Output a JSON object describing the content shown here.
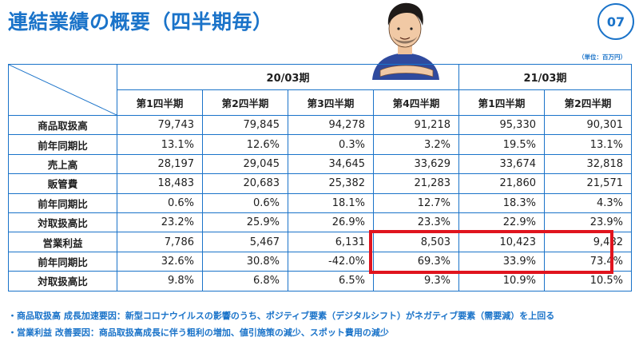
{
  "header": {
    "title": "連結業績の概要（四半期毎）",
    "page_number": "07",
    "unit": "（単位：百万円）"
  },
  "colors": {
    "accent": "#1a73c9",
    "highlight": "#e0141e",
    "text": "#1e1e1e"
  },
  "table": {
    "groups": [
      "20/03期",
      "21/03期"
    ],
    "quarters": [
      "第1四半期",
      "第2四半期",
      "第3四半期",
      "第4四半期",
      "第1四半期",
      "第2四半期"
    ],
    "rows": [
      {
        "label": "商品取扱高",
        "values": [
          "79,743",
          "79,845",
          "94,278",
          "91,218",
          "95,330",
          "90,301"
        ]
      },
      {
        "label": "前年同期比",
        "values": [
          "13.1%",
          "12.6%",
          "0.3%",
          "3.2%",
          "19.5%",
          "13.1%"
        ]
      },
      {
        "label": "売上高",
        "values": [
          "28,197",
          "29,045",
          "34,645",
          "33,629",
          "33,674",
          "32,818"
        ]
      },
      {
        "label": "販管費",
        "values": [
          "18,483",
          "20,683",
          "25,382",
          "21,283",
          "21,860",
          "21,571"
        ]
      },
      {
        "label": "前年同期比",
        "values": [
          "0.6%",
          "0.6%",
          "18.1%",
          "12.7%",
          "18.3%",
          "4.3%"
        ]
      },
      {
        "label": "対取扱高比",
        "values": [
          "23.2%",
          "25.9%",
          "26.9%",
          "23.3%",
          "22.9%",
          "23.9%"
        ]
      },
      {
        "label": "営業利益",
        "values": [
          "7,786",
          "5,467",
          "6,131",
          "8,503",
          "10,423",
          "9,482"
        ]
      },
      {
        "label": "前年同期比",
        "values": [
          "32.6%",
          "30.8%",
          "-42.0%",
          "69.3%",
          "33.9%",
          "73.4%"
        ]
      },
      {
        "label": "対取扱高比",
        "values": [
          "9.8%",
          "6.8%",
          "6.5%",
          "9.3%",
          "10.9%",
          "10.5%"
        ]
      }
    ]
  },
  "notes": [
    "・商品取扱高 成長加速要因：新型コロナウイルスの影響のうち、ポジティブ要素（デジタルシフト）がネガティブ要素（需要減）を上回る",
    "・営業利益 改善要因：商品取扱高成長に伴う粗利の増加、値引施策の減少、スポット費用の減少"
  ]
}
